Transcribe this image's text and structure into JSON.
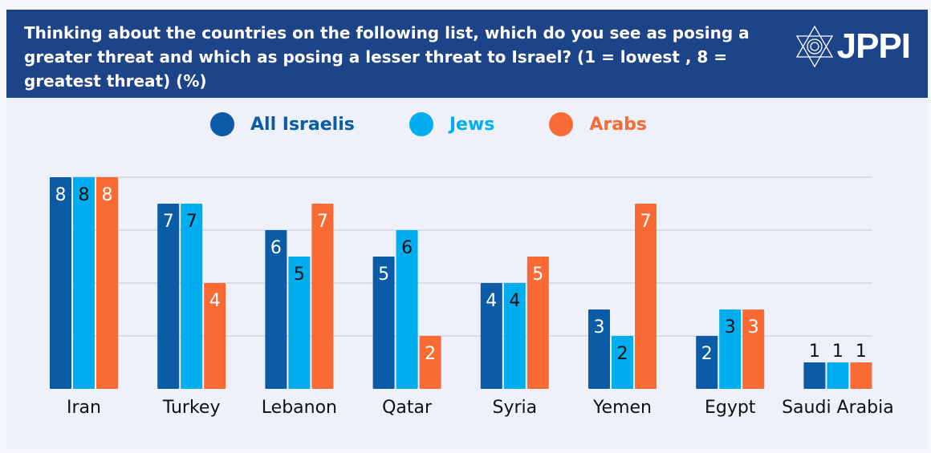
{
  "header": {
    "title": "Thinking about the countries on the following list, which do you see as posing a greater threat and which as posing a lesser threat to Israel? (1 = lowest , 8 = greatest threat) (%)",
    "logo": "JPPI",
    "logo_icon": "star-of-david-icon"
  },
  "colors": {
    "header": "#1d4388",
    "All Israelis": "#0b5ba6",
    "Jews": "#00aeef",
    "Arabs": "#fa6a34"
  },
  "chart_data": {
    "type": "bar",
    "title": "Thinking about the countries on the following list, which do you see as posing a greater threat and which as posing a lesser threat to Israel? (1 = lowest , 8 = greatest threat) (%)",
    "categories": [
      "Iran",
      "Turkey",
      "Lebanon",
      "Qatar",
      "Syria",
      "Yemen",
      "Egypt",
      "Saudi Arabia"
    ],
    "series": [
      {
        "name": "All Israelis",
        "values": [
          8,
          7,
          6,
          5,
          4,
          3,
          2,
          1
        ]
      },
      {
        "name": "Jews",
        "values": [
          8,
          7,
          5,
          6,
          4,
          2,
          3,
          1
        ]
      },
      {
        "name": "Arabs",
        "values": [
          8,
          4,
          7,
          2,
          5,
          7,
          3,
          1
        ]
      }
    ],
    "xlabel": "",
    "ylabel": "",
    "ylim": [
      0,
      8
    ],
    "grid": true,
    "legend": "top"
  }
}
